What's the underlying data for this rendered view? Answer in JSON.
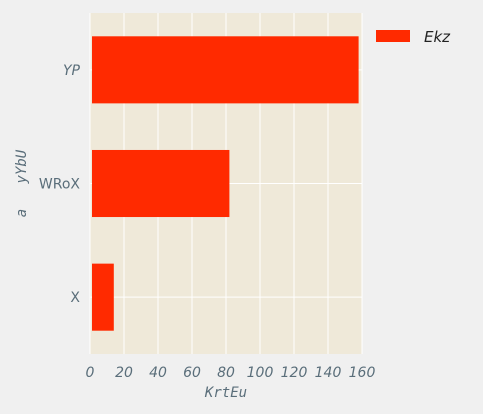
{
  "chart_data": {
    "type": "bar",
    "orientation": "horizontal",
    "categories": [
      "X",
      "WRoX",
      "YP"
    ],
    "category_styles": [
      "normal",
      "normal",
      "italic"
    ],
    "series": [
      {
        "name": "Ekz",
        "values": [
          14,
          82,
          158
        ],
        "color": "#ff2a00"
      }
    ],
    "xlabel": "KrtEu",
    "ylabel": "a   yYbU",
    "xlim": [
      0,
      160
    ],
    "xticks": [
      0,
      20,
      40,
      60,
      80,
      100,
      120,
      140,
      160
    ],
    "grid": true,
    "legend_position": "top-right",
    "plot_background": "#efe9d9",
    "page_background": "#f0f0f0",
    "grid_color": "#ffffff"
  }
}
